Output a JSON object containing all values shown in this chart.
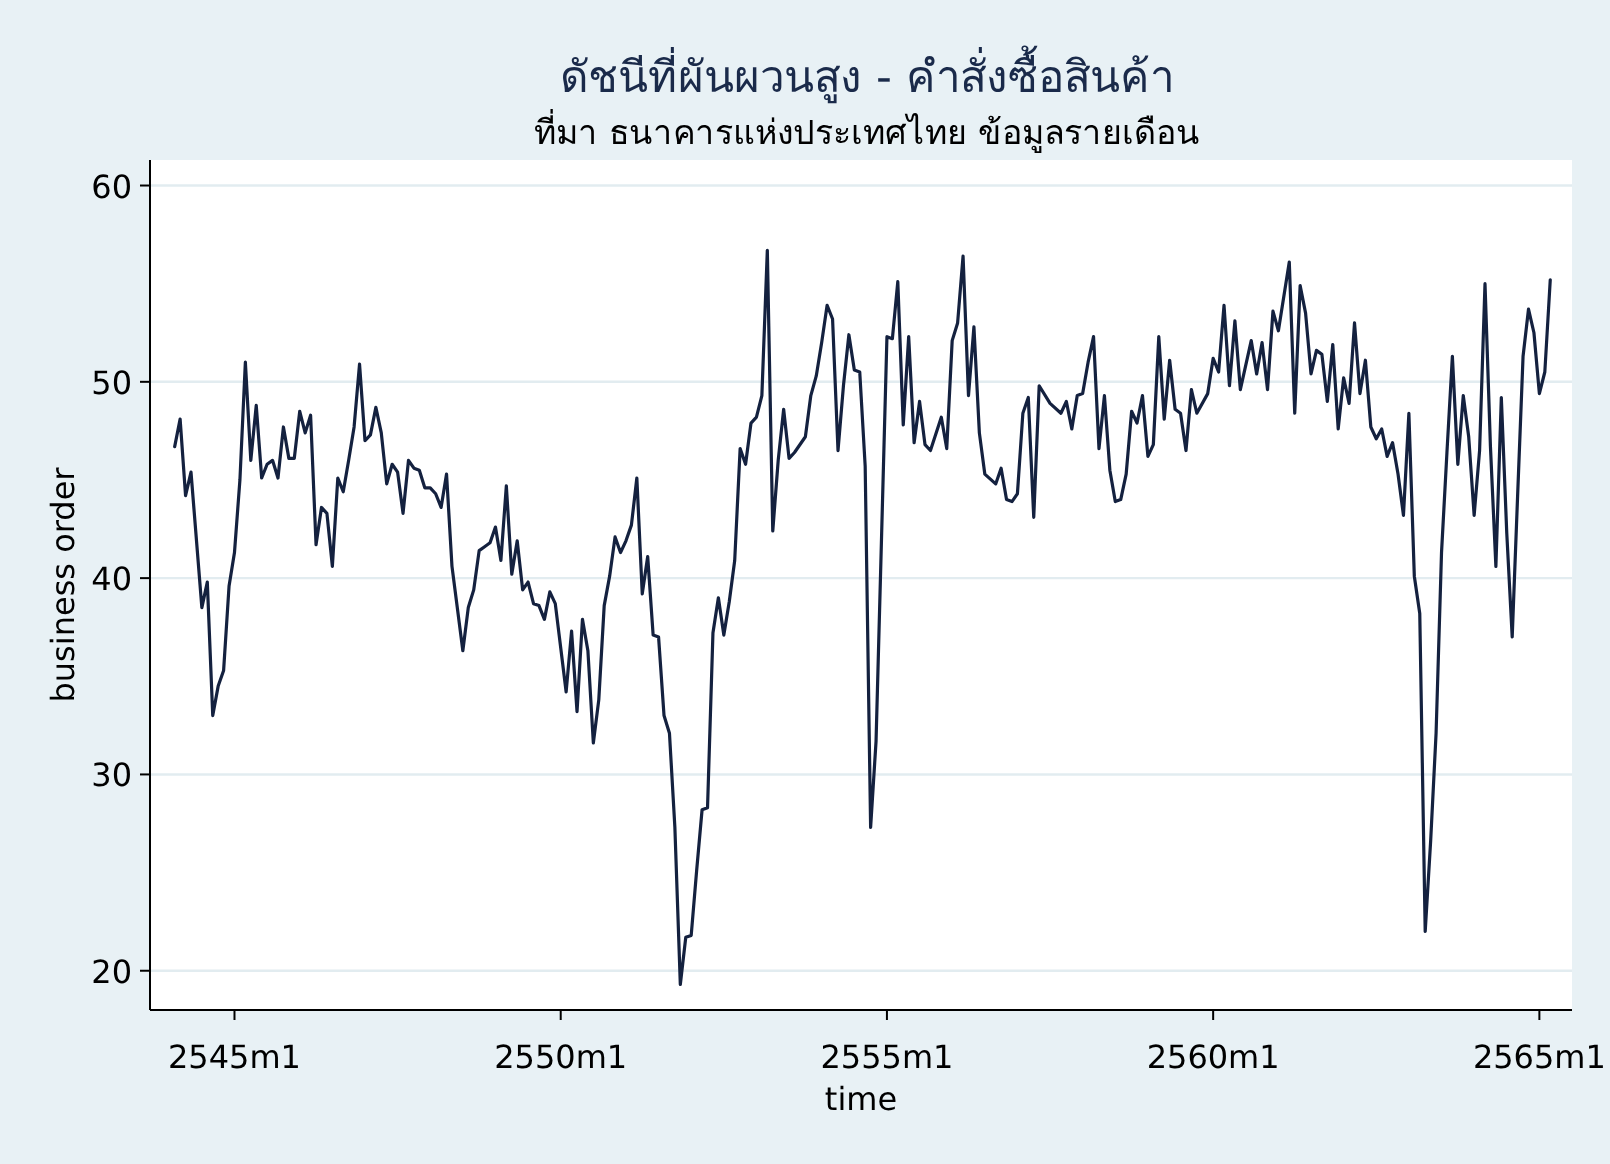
{
  "chart_data": {
    "type": "line",
    "title": "ดัชนีที่ผันผวนสูง - คำสั่งซื้อสินค้า",
    "subtitle": "ที่มา ธนาคารแห่งประเทศไทย ข้อมูลรายเดือน",
    "xlabel": "time",
    "ylabel": "business order",
    "xlim": [
      "2543-09-15",
      "2565-07-01"
    ],
    "ylim": [
      18,
      61.3
    ],
    "xticks": [
      {
        "value": "2545-01",
        "label": "2545m1"
      },
      {
        "value": "2550-01",
        "label": "2550m1"
      },
      {
        "value": "2555-01",
        "label": "2555m1"
      },
      {
        "value": "2560-01",
        "label": "2560m1"
      },
      {
        "value": "2565-01",
        "label": "2565m1"
      }
    ],
    "yticks": [
      20,
      30,
      40,
      50,
      60
    ],
    "grid": "y",
    "x": [
      "2544-02",
      "2544-03",
      "2544-04",
      "2544-05",
      "2544-07",
      "2544-08",
      "2544-09",
      "2544-10",
      "2544-11",
      "2544-12",
      "2545-01",
      "2545-02",
      "2545-03",
      "2545-04",
      "2545-05",
      "2545-06",
      "2545-07",
      "2545-08",
      "2545-09",
      "2545-10",
      "2545-11",
      "2545-12",
      "2546-01",
      "2546-02",
      "2546-03",
      "2546-04",
      "2546-05",
      "2546-06",
      "2546-07",
      "2546-08",
      "2546-09",
      "2546-10",
      "2546-11",
      "2546-12",
      "2547-01",
      "2547-02",
      "2547-03",
      "2547-04",
      "2547-05",
      "2547-06",
      "2547-07",
      "2547-08",
      "2547-09",
      "2547-10",
      "2547-11",
      "2547-12",
      "2548-01",
      "2548-02",
      "2548-03",
      "2548-04",
      "2548-05",
      "2548-07",
      "2548-08",
      "2548-09",
      "2548-10",
      "2548-11",
      "2548-12",
      "2549-01",
      "2549-02",
      "2549-03",
      "2549-04",
      "2549-05",
      "2549-06",
      "2549-07",
      "2549-08",
      "2549-09",
      "2549-10",
      "2549-11",
      "2549-12",
      "2550-02",
      "2550-03",
      "2550-04",
      "2550-05",
      "2550-06",
      "2550-07",
      "2550-08",
      "2550-09",
      "2550-10",
      "2550-11",
      "2550-12",
      "2551-01",
      "2551-02",
      "2551-03",
      "2551-04",
      "2551-05",
      "2551-06",
      "2551-07",
      "2551-08",
      "2551-09",
      "2551-10",
      "2551-11",
      "2551-12",
      "2552-01",
      "2552-02",
      "2552-03",
      "2552-04",
      "2552-05",
      "2552-06",
      "2552-07",
      "2552-08",
      "2552-09",
      "2552-10",
      "2552-11",
      "2552-12",
      "2553-01",
      "2553-02",
      "2553-03",
      "2553-04",
      "2553-05",
      "2553-06",
      "2553-07",
      "2553-08",
      "2553-10",
      "2553-11",
      "2553-12",
      "2554-01",
      "2554-02",
      "2554-03",
      "2554-04",
      "2554-05",
      "2554-06",
      "2554-07",
      "2554-08",
      "2554-09",
      "2554-10",
      "2554-11",
      "2555-01",
      "2555-02",
      "2555-03",
      "2555-04",
      "2555-05",
      "2555-06",
      "2555-07",
      "2555-08",
      "2555-09",
      "2555-11",
      "2555-12",
      "2556-01",
      "2556-02",
      "2556-03",
      "2556-04",
      "2556-05",
      "2556-06",
      "2556-07",
      "2556-09",
      "2556-10",
      "2556-11",
      "2556-12",
      "2557-01",
      "2557-02",
      "2557-03",
      "2557-04",
      "2557-05",
      "2557-07",
      "2557-09",
      "2557-10",
      "2557-11",
      "2557-12",
      "2558-01",
      "2558-02",
      "2558-03",
      "2558-04",
      "2558-05",
      "2558-06",
      "2558-07",
      "2558-08",
      "2558-09",
      "2558-10",
      "2558-11",
      "2558-12",
      "2559-01",
      "2559-02",
      "2559-03",
      "2559-04",
      "2559-05",
      "2559-06",
      "2559-07",
      "2559-08",
      "2559-09",
      "2559-10",
      "2559-12",
      "2560-01",
      "2560-02",
      "2560-03",
      "2560-04",
      "2560-05",
      "2560-06",
      "2560-08",
      "2560-09",
      "2560-10",
      "2560-11",
      "2560-12",
      "2561-01",
      "2561-03",
      "2561-04",
      "2561-05",
      "2561-06",
      "2561-07",
      "2561-08",
      "2561-09",
      "2561-10",
      "2561-11",
      "2561-12",
      "2562-01",
      "2562-02",
      "2562-03",
      "2562-04",
      "2562-05",
      "2562-06",
      "2562-07",
      "2562-08",
      "2562-09",
      "2562-10",
      "2562-11",
      "2562-12",
      "2563-01",
      "2563-02",
      "2563-03",
      "2563-04",
      "2563-05",
      "2563-06",
      "2563-07",
      "2563-08",
      "2563-09",
      "2563-10",
      "2563-11",
      "2563-12",
      "2564-01",
      "2564-02",
      "2564-03",
      "2564-04",
      "2564-05",
      "2564-06",
      "2564-07",
      "2564-08",
      "2564-09",
      "2564-10",
      "2564-11",
      "2564-12",
      "2565-01",
      "2565-02",
      "2565-03"
    ],
    "series": [
      {
        "color": "#14213f",
        "values": [
          46.7,
          48.1,
          44.2,
          45.4,
          38.5,
          39.8,
          33.0,
          34.5,
          35.3,
          39.6,
          41.3,
          45.0,
          51.0,
          46.0,
          48.8,
          45.1,
          45.8,
          46.0,
          45.1,
          47.7,
          46.1,
          46.1,
          48.5,
          47.4,
          48.3,
          41.7,
          43.6,
          43.3,
          40.6,
          45.1,
          44.4,
          46.0,
          47.7,
          50.9,
          47.0,
          47.3,
          48.7,
          47.4,
          44.8,
          45.8,
          45.4,
          43.3,
          46.0,
          45.6,
          45.5,
          44.6,
          44.6,
          44.3,
          43.6,
          45.3,
          40.6,
          36.3,
          38.5,
          39.4,
          41.4,
          41.6,
          41.8,
          42.6,
          40.9,
          44.7,
          40.2,
          41.9,
          39.4,
          39.8,
          38.7,
          38.6,
          37.9,
          39.3,
          38.7,
          34.2,
          37.3,
          33.2,
          37.9,
          36.3,
          31.6,
          33.8,
          38.6,
          40.1,
          42.1,
          41.3,
          41.9,
          42.7,
          45.1,
          39.2,
          41.1,
          37.1,
          37.0,
          33.0,
          32.1,
          27.3,
          19.3,
          21.7,
          21.8,
          25.1,
          28.2,
          28.3,
          37.2,
          39.0,
          37.1,
          38.8,
          40.9,
          46.6,
          45.8,
          47.9,
          48.2,
          49.3,
          56.7,
          42.4,
          46.0,
          48.6,
          46.1,
          46.4,
          47.2,
          49.3,
          50.3,
          52.0,
          53.9,
          53.2,
          46.5,
          49.8,
          52.4,
          50.6,
          50.5,
          45.7,
          27.3,
          31.7,
          52.3,
          52.2,
          55.1,
          47.8,
          52.3,
          46.9,
          49.0,
          46.8,
          46.5,
          48.2,
          46.6,
          52.1,
          53.0,
          56.4,
          49.3,
          52.8,
          47.4,
          45.3,
          44.8,
          45.6,
          44.0,
          43.9,
          44.3,
          48.4,
          49.2,
          43.1,
          49.8,
          48.9,
          48.4,
          49.0,
          47.6,
          49.3,
          49.4,
          51.0,
          52.3,
          46.6,
          49.3,
          45.5,
          43.9,
          44.0,
          45.3,
          48.5,
          47.9,
          49.3,
          46.2,
          46.8,
          52.3,
          48.1,
          51.1,
          48.6,
          48.4,
          46.5,
          49.6,
          48.4,
          49.4,
          51.2,
          50.5,
          53.9,
          49.8,
          53.1,
          49.6,
          52.1,
          50.4,
          52.0,
          49.6,
          53.6,
          52.6,
          56.1,
          48.4,
          54.9,
          53.5,
          50.4,
          51.6,
          51.4,
          49.0,
          51.9,
          47.6,
          50.2,
          48.9,
          53.0,
          49.4,
          51.1,
          47.7,
          47.1,
          47.6,
          46.2,
          46.9,
          45.3,
          43.2,
          48.4,
          40.1,
          38.2,
          22.0,
          26.6,
          32.1,
          41.3,
          46.4,
          51.3,
          45.8,
          49.3,
          47.2,
          43.2,
          46.5,
          55.0,
          46.7,
          40.6,
          49.2,
          42.3,
          37.0,
          44.2,
          51.3,
          53.7,
          52.5,
          49.4,
          50.5,
          55.2
        ]
      }
    ]
  }
}
